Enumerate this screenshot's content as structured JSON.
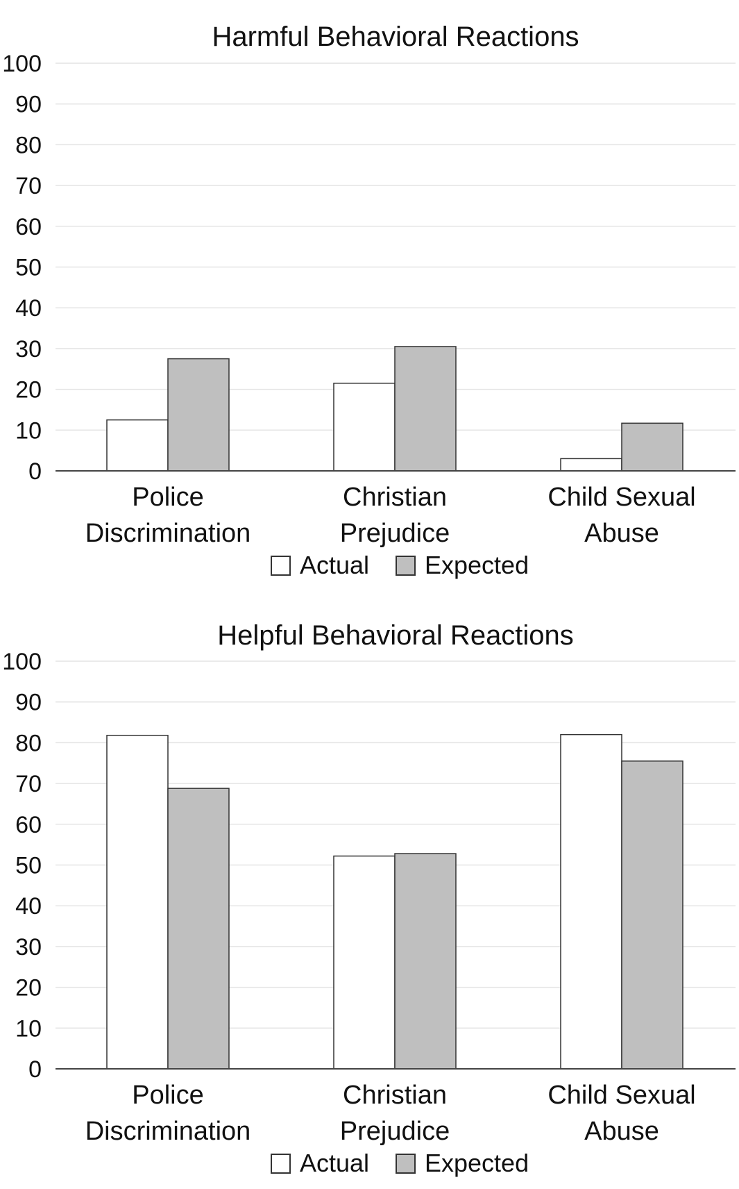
{
  "chart_data": [
    {
      "type": "bar",
      "title": "Harmful Behavioral Reactions",
      "categories": [
        [
          "Police",
          "Discrimination"
        ],
        [
          "Christian",
          "Prejudice"
        ],
        [
          "Child Sexual",
          "Abuse"
        ]
      ],
      "series": [
        {
          "name": "Actual",
          "color": "#ffffff",
          "values": [
            12.5,
            21.5,
            3
          ]
        },
        {
          "name": "Expected",
          "color": "#bfbfbf",
          "values": [
            27.5,
            30.5,
            11.7
          ]
        }
      ],
      "yticks": [
        "0",
        "10",
        "20",
        "30",
        "40",
        "50",
        "60",
        "70",
        "80",
        "90",
        "100"
      ],
      "ylim": [
        0,
        100
      ],
      "grid": true,
      "legend": "bottom-center"
    },
    {
      "type": "bar",
      "title": "Helpful Behavioral Reactions",
      "categories": [
        [
          "Police",
          "Discrimination"
        ],
        [
          "Christian",
          "Prejudice"
        ],
        [
          "Child Sexual",
          "Abuse"
        ]
      ],
      "series": [
        {
          "name": "Actual",
          "color": "#ffffff",
          "values": [
            81.8,
            52.2,
            82
          ]
        },
        {
          "name": "Expected",
          "color": "#bfbfbf",
          "values": [
            68.8,
            52.8,
            75.5
          ]
        }
      ],
      "yticks": [
        "0",
        "10",
        "20",
        "30",
        "40",
        "50",
        "60",
        "70",
        "80",
        "90",
        "100"
      ],
      "ylim": [
        0,
        100
      ],
      "grid": true,
      "legend": "bottom-center"
    }
  ]
}
